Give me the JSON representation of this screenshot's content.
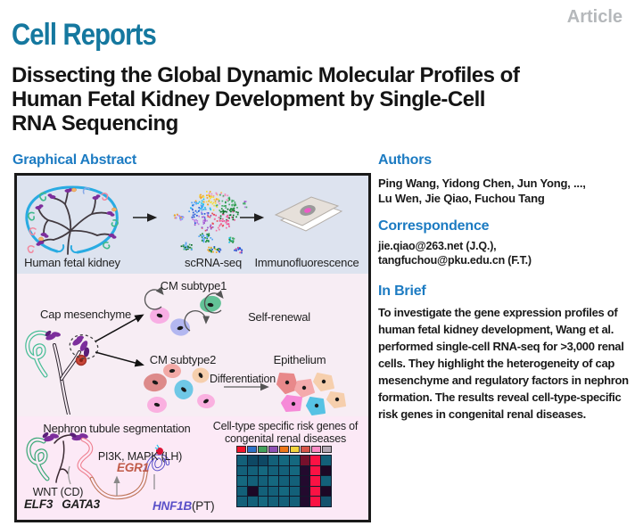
{
  "masthead": {
    "journal": "Cell Reports",
    "article_type": "Article"
  },
  "title_lines": [
    "Dissecting the Global Dynamic Molecular Profiles of",
    "Human Fetal Kidney Development by Single-Cell",
    "RNA Sequencing"
  ],
  "graphical_abstract": {
    "heading": "Graphical Abstract",
    "pipeline": {
      "kidney_label": "Human fetal kidney",
      "scrna_label": "scRNA-seq",
      "immuno_label": "Immunofluorescence"
    },
    "cm_panel": {
      "cap_label": "Cap mesenchyme",
      "subtype1_label": "CM subtype1",
      "self_renewal_label": "Self-renewal",
      "subtype2_label": "CM subtype2",
      "differentiation_label": "Differentiation",
      "epithelium_label": "Epithelium"
    },
    "nephron_panel": {
      "title": "Nephron tubule segmentation",
      "pi3k_label": "PI3K, MAPK (LH)",
      "egr1_gene": "EGR1",
      "wnt_label": "WNT (CD)",
      "elf3_gene": "ELF3",
      "gata3_gene": "GATA3",
      "hnf1b_gene": "HNF1B",
      "hnf1b_segment": "(PT)",
      "heatmap_title_line1": "Cell-type specific risk genes of",
      "heatmap_title_line2": "congenital renal diseases",
      "heatmap": {
        "header_colors": [
          "#f5132b",
          "#2e72c8",
          "#43a15c",
          "#8f51b5",
          "#ee7518",
          "#f3d33c",
          "#d8544a",
          "#fb8ac4",
          "#b1a6b2"
        ],
        "cell_rows": [
          [
            "#136079",
            "#0e4864",
            "#0e4864",
            "#136079",
            "#15687f",
            "#15687f",
            "#76102c",
            "#fb1244",
            "#136079"
          ],
          [
            "#136079",
            "#136079",
            "#15687f",
            "#136079",
            "#136079",
            "#15687f",
            "#230a2e",
            "#fb1244",
            "#1d0826"
          ],
          [
            "#15687f",
            "#136079",
            "#136079",
            "#15687f",
            "#136079",
            "#136079",
            "#230a2e",
            "#fb1244",
            "#136079"
          ],
          [
            "#136079",
            "#1d0826",
            "#136079",
            "#136079",
            "#15687f",
            "#136079",
            "#230a2e",
            "#fb1244",
            "#1d0826"
          ],
          [
            "#136079",
            "#136079",
            "#15687f",
            "#136079",
            "#136079",
            "#136079",
            "#230a2e",
            "#fb1244",
            "#15536e"
          ]
        ]
      }
    },
    "scatter_colors": [
      "#1f8f3a",
      "#0c6b26",
      "#ef4f92",
      "#f272a2",
      "#e84b55",
      "#9a4fc8",
      "#bb7ce4",
      "#2356d8",
      "#53a2f4",
      "#1ac3e8",
      "#f2a51e",
      "#f4df3d",
      "#f08ebc",
      "#48b06c"
    ]
  },
  "authors": {
    "heading": "Authors",
    "lines": [
      "Ping Wang, Yidong Chen, Jun Yong, ...,",
      "Lu Wen, Jie Qiao, Fuchou Tang"
    ]
  },
  "correspondence": {
    "heading": "Correspondence",
    "lines": [
      "jie.qiao@263.net (J.Q.),",
      "tangfuchou@pku.edu.cn (F.T.)"
    ]
  },
  "in_brief": {
    "heading": "In Brief",
    "text": "To investigate the gene expression profiles of human fetal kidney development, Wang et al. performed single-cell RNA-seq for >3,000 renal cells. They highlight the heterogeneity of cap mesenchyme and regulatory factors in nephron formation. The results reveal cell-type-specific risk genes in congenital renal diseases."
  },
  "colors": {
    "brand_blue": "#15789f",
    "heading_blue": "#1c7bc2",
    "article_gray": "#b5b8bb",
    "title_black": "#141414",
    "box_border": "#1a1a1a",
    "panel_top_bg": "#dde3ef",
    "panel_mid_bg": "#f7edf4",
    "panel_bottom_bg": "#fce9f6",
    "egr1": "#c05a48",
    "hnf1b": "#5a50c8",
    "kidney_outline": "#29abe2",
    "cap_purple": "#7c2e9c",
    "nephron_green": "#3aa877",
    "red_cell": "#c94638"
  }
}
